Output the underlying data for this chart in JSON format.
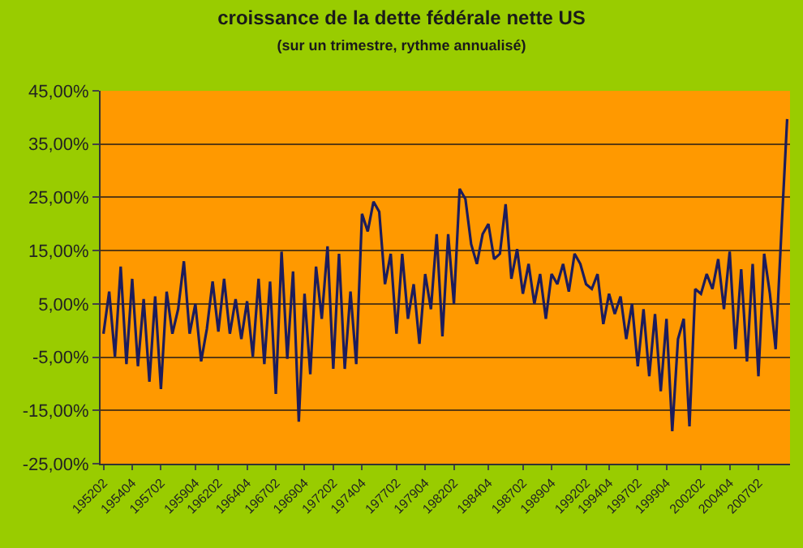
{
  "chart_data": {
    "type": "line",
    "title": "croissance de la dette fédérale nette US",
    "subtitle": "(sur un trimestre, rythme annualisé)",
    "categories": [
      "195202",
      null,
      null,
      null,
      null,
      "195404",
      null,
      null,
      null,
      null,
      "195702",
      null,
      null,
      null,
      null,
      null,
      "195904",
      null,
      null,
      null,
      "196202",
      null,
      null,
      null,
      null,
      "196404",
      null,
      null,
      null,
      null,
      "196702",
      null,
      null,
      null,
      null,
      "196904",
      null,
      null,
      null,
      null,
      "197202",
      null,
      null,
      null,
      null,
      "197404",
      null,
      null,
      null,
      null,
      null,
      "197702",
      null,
      null,
      null,
      null,
      "197904",
      null,
      null,
      null,
      null,
      "198202",
      null,
      null,
      null,
      null,
      null,
      "198404",
      null,
      null,
      null,
      null,
      null,
      "198702",
      null,
      null,
      null,
      null,
      "198904",
      null,
      null,
      null,
      null,
      null,
      "199202",
      null,
      null,
      null,
      "199404",
      null,
      null,
      null,
      null,
      "199702",
      null,
      null,
      null,
      null,
      "199904",
      null,
      null,
      null,
      null,
      null,
      "200202",
      null,
      null,
      null,
      null,
      "200404",
      null,
      null,
      null,
      null,
      "200702",
      null,
      null,
      null,
      null,
      null
    ],
    "values": [
      -0.6,
      7.3,
      -4.9,
      12.0,
      -6.3,
      9.7,
      -6.7,
      5.9,
      -9.6,
      6.4,
      -11.0,
      7.3,
      -0.6,
      4.0,
      13.0,
      -0.6,
      5.0,
      -5.8,
      0.3,
      9.2,
      -0.2,
      9.7,
      -0.6,
      5.9,
      -1.6,
      5.5,
      -4.9,
      9.7,
      -6.3,
      9.2,
      -11.9,
      14.8,
      -5.3,
      11.1,
      -17.1,
      6.9,
      -8.2,
      12.0,
      2.2,
      15.8,
      -7.2,
      14.4,
      -7.2,
      7.3,
      -6.3,
      21.9,
      18.6,
      24.2,
      22.3,
      8.7,
      14.4,
      -0.6,
      14.4,
      2.2,
      8.7,
      -2.5,
      10.6,
      4.0,
      18.1,
      -1.1,
      18.1,
      5.0,
      26.6,
      24.7,
      16.2,
      12.5,
      18.1,
      20.0,
      13.4,
      14.4,
      23.7,
      9.7,
      15.3,
      6.9,
      12.5,
      5.0,
      10.6,
      2.2,
      10.6,
      8.7,
      12.5,
      7.3,
      14.4,
      12.5,
      8.7,
      7.8,
      10.6,
      1.2,
      6.9,
      3.1,
      6.4,
      -1.6,
      5.0,
      -6.7,
      4.0,
      -8.6,
      3.1,
      -11.4,
      2.2,
      -18.9,
      -1.6,
      2.2,
      -18.0,
      7.8,
      6.9,
      10.6,
      7.8,
      13.4,
      4.0,
      14.8,
      -3.5,
      11.5,
      -5.8,
      12.5,
      -8.6,
      14.4,
      6.9,
      -3.5,
      18.6,
      39.7
    ],
    "color": "#1c1c5c",
    "ylim": [
      -25,
      45
    ],
    "yticks": [
      {
        "value": -25,
        "label": "-25,00%"
      },
      {
        "value": -15,
        "label": "-15,00%"
      },
      {
        "value": -5,
        "label": "-5,00%"
      },
      {
        "value": 5,
        "label": "5,00%"
      },
      {
        "value": 15,
        "label": "15,00%"
      },
      {
        "value": 25,
        "label": "25,00%"
      },
      {
        "value": 35,
        "label": "35,00%"
      },
      {
        "value": 45,
        "label": "45,00%"
      }
    ],
    "grid": "y",
    "marker": "none",
    "line_style": "solid"
  }
}
